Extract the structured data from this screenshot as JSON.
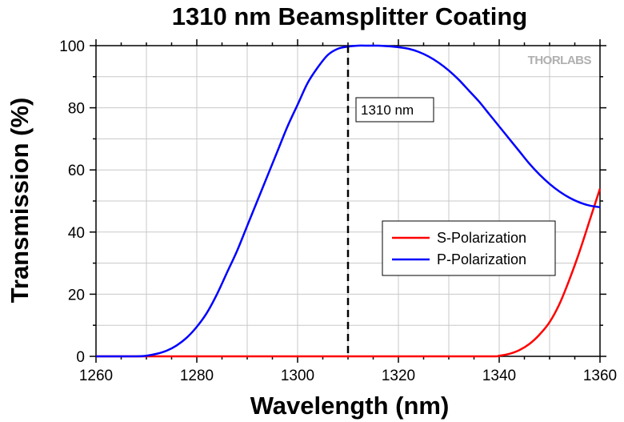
{
  "chart_data": {
    "type": "line",
    "title": "1310 nm Beamsplitter Coating",
    "xlabel": "Wavelength (nm)",
    "ylabel": "Transmission (%)",
    "xlim": [
      1260,
      1360
    ],
    "ylim": [
      0,
      100
    ],
    "xticks": [
      "1260",
      "1280",
      "1300",
      "1320",
      "1340",
      "1360"
    ],
    "yticks": [
      "0",
      "20",
      "40",
      "60",
      "80",
      "100"
    ],
    "grid": true,
    "legend_position": "center-right",
    "series": [
      {
        "name": "S-Polarization",
        "color": "#ff0000",
        "x": [
          1260,
          1280,
          1300,
          1320,
          1338,
          1340,
          1342,
          1344,
          1346,
          1348,
          1350,
          1352,
          1354,
          1356,
          1358,
          1360
        ],
        "y": [
          0,
          0,
          0,
          0,
          0,
          0.2,
          0.8,
          2,
          4,
          7,
          11,
          17,
          25,
          34,
          44,
          54
        ]
      },
      {
        "name": "P-Polarization",
        "color": "#0000ff",
        "x": [
          1260,
          1268,
          1270,
          1272,
          1274,
          1276,
          1278,
          1280,
          1282,
          1284,
          1286,
          1288,
          1290,
          1292,
          1294,
          1296,
          1298,
          1300,
          1302,
          1304,
          1306,
          1308,
          1310,
          1312,
          1314,
          1316,
          1318,
          1320,
          1322,
          1324,
          1326,
          1328,
          1330,
          1332,
          1334,
          1336,
          1338,
          1340,
          1342,
          1344,
          1346,
          1348,
          1350,
          1352,
          1354,
          1356,
          1358,
          1360
        ],
        "y": [
          0,
          0,
          0.2,
          0.8,
          1.8,
          3.5,
          6,
          9.5,
          14,
          20,
          27,
          34,
          42,
          50,
          58,
          66,
          74,
          81,
          88,
          93,
          97,
          99,
          99.7,
          100,
          100,
          100,
          99.8,
          99.5,
          99,
          98,
          96.5,
          94.5,
          92,
          89,
          85.5,
          82,
          78,
          74,
          70,
          66,
          62,
          58.5,
          55.5,
          53,
          51,
          49.5,
          48.5,
          48
        ]
      }
    ],
    "annotations": [
      {
        "type": "vline",
        "x": 1310,
        "style": "dashed",
        "label": "1310 nm"
      }
    ],
    "logo": "THORLABS"
  }
}
